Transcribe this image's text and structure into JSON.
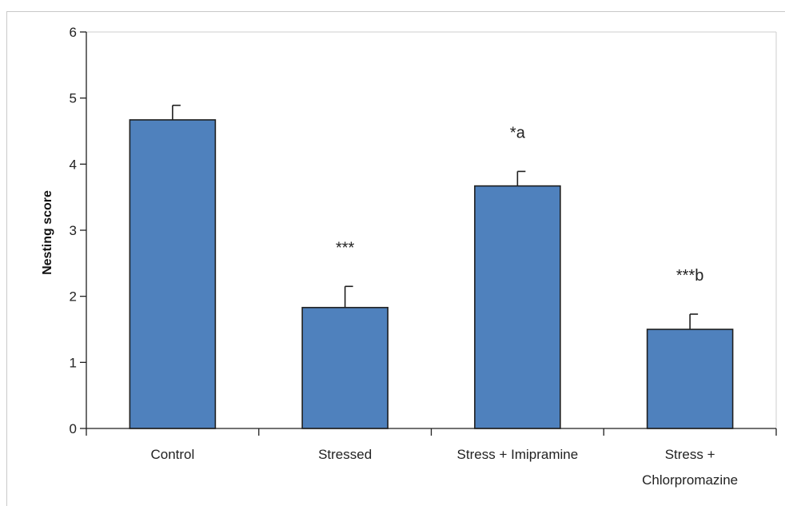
{
  "chart_data": {
    "type": "bar",
    "title": "",
    "xlabel": "",
    "ylabel": "Nesting score",
    "ylim": [
      0,
      6
    ],
    "yticks": [
      "0",
      "1",
      "2",
      "3",
      "4",
      "5",
      "6"
    ],
    "categories": [
      [
        "Control"
      ],
      [
        "Stressed"
      ],
      [
        "Stress + Imipramine"
      ],
      [
        "Stress +",
        "Chlorpromazine"
      ]
    ],
    "values": [
      4.67,
      1.83,
      3.67,
      1.5
    ],
    "errors": [
      0.22,
      0.32,
      0.22,
      0.23
    ],
    "annotations": [
      "",
      "***",
      "*a",
      "***b"
    ],
    "bar_color": "#4f81bd",
    "bar_edge_color": "#1f1f1f",
    "grid": false,
    "legend": "none"
  }
}
